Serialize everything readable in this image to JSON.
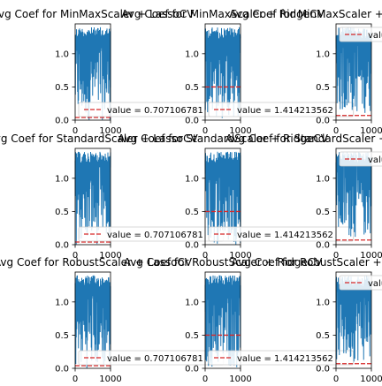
{
  "figure": {
    "background": "#ffffff",
    "line_color": "#1f77b4",
    "ref_color": "#d62728"
  },
  "chart_data": [
    {
      "type": "line",
      "title": "Avg Coef for MinMaxScaler + LassoCV",
      "xlabel": "",
      "ylabel": "",
      "xlim": [
        0,
        1000
      ],
      "ylim": [
        0,
        1.45
      ],
      "xticks": [
        "0",
        "1000"
      ],
      "yticks": [
        "0.0",
        "0.5",
        "1.0"
      ],
      "series": [
        {
          "x": [
            0,
            1000
          ],
          "y": [
            0,
            1.4
          ]
        },
        {
          "name": "value = 0.707106781",
          "y_const": 0.04
        }
      ],
      "legend": "lower right",
      "grid": false
    },
    {
      "type": "line",
      "title": "Avg Coef for MinMaxScaler + RidgeCV",
      "xlabel": "",
      "ylabel": "",
      "xlim": [
        0,
        1000
      ],
      "ylim": [
        0,
        1.45
      ],
      "xticks": [
        "0",
        "1000"
      ],
      "yticks": [
        "0.0",
        "0.5",
        "1.0"
      ],
      "series": [
        {
          "x": [
            0,
            1000
          ],
          "y": [
            0,
            1.4
          ]
        },
        {
          "name": "value = 1.414213562",
          "y_const": 0.5
        }
      ],
      "legend": "lower right",
      "grid": false
    },
    {
      "type": "line",
      "title": "Avg Coef for MinMaxScaler + LinearRegression",
      "xlabel": "",
      "ylabel": "",
      "xlim": [
        0,
        1000
      ],
      "ylim": [
        0,
        1.45
      ],
      "xticks": [
        "0",
        "1000"
      ],
      "yticks": [
        "0.0",
        "0.5",
        "1.0"
      ],
      "series": [
        {
          "x": [
            0,
            1000
          ],
          "y": [
            0.1,
            1.4
          ]
        },
        {
          "name": "value",
          "y_const": 0.07
        }
      ],
      "legend": "upper right",
      "grid": false
    },
    {
      "type": "line",
      "title": "Avg Coef for StandardScaler + LassoCV",
      "xlabel": "",
      "ylabel": "",
      "xlim": [
        0,
        1000
      ],
      "ylim": [
        0,
        1.45
      ],
      "xticks": [
        "0",
        "1000"
      ],
      "yticks": [
        "0.0",
        "0.5",
        "1.0"
      ],
      "series": [
        {
          "x": [
            0,
            1000
          ],
          "y": [
            0,
            1.4
          ]
        },
        {
          "name": "value = 0.707106781",
          "y_const": 0.04
        }
      ],
      "legend": "lower right",
      "grid": false
    },
    {
      "type": "line",
      "title": "Avg Coef for StandardScaler + RidgeCV",
      "xlabel": "",
      "ylabel": "",
      "xlim": [
        0,
        1000
      ],
      "ylim": [
        0,
        1.45
      ],
      "xticks": [
        "0",
        "1000"
      ],
      "yticks": [
        "0.0",
        "0.5",
        "1.0"
      ],
      "series": [
        {
          "x": [
            0,
            1000
          ],
          "y": [
            0,
            1.4
          ]
        },
        {
          "name": "value = 1.414213562",
          "y_const": 0.5
        }
      ],
      "legend": "lower right",
      "grid": false
    },
    {
      "type": "line",
      "title": "Avg Coef for StandardScaler + LinearRegression",
      "xlabel": "",
      "ylabel": "",
      "xlim": [
        0,
        1000
      ],
      "ylim": [
        0,
        1.45
      ],
      "xticks": [
        "0",
        "1000"
      ],
      "yticks": [
        "0.0",
        "0.5",
        "1.0"
      ],
      "series": [
        {
          "x": [
            0,
            1000
          ],
          "y": [
            0.1,
            1.4
          ]
        },
        {
          "name": "value",
          "y_const": 0.07
        }
      ],
      "legend": "upper right",
      "grid": false
    },
    {
      "type": "line",
      "title": "Avg Coef for RobustScaler + LassoCV",
      "xlabel": "",
      "ylabel": "",
      "xlim": [
        0,
        1000
      ],
      "ylim": [
        0,
        1.45
      ],
      "xticks": [
        "0",
        "1000"
      ],
      "yticks": [
        "0.0",
        "0.5",
        "1.0"
      ],
      "series": [
        {
          "x": [
            0,
            1000
          ],
          "y": [
            0,
            1.4
          ]
        },
        {
          "name": "value = 0.707106781",
          "y_const": 0.04
        }
      ],
      "legend": "lower right",
      "grid": false
    },
    {
      "type": "line",
      "title": "Avg Coef for RobustScaler + RidgeCV",
      "xlabel": "",
      "ylabel": "",
      "xlim": [
        0,
        1000
      ],
      "ylim": [
        0,
        1.45
      ],
      "xticks": [
        "0",
        "1000"
      ],
      "yticks": [
        "0.0",
        "0.5",
        "1.0"
      ],
      "series": [
        {
          "x": [
            0,
            1000
          ],
          "y": [
            0,
            1.4
          ]
        },
        {
          "name": "value = 1.414213562",
          "y_const": 0.5
        }
      ],
      "legend": "lower right",
      "grid": false
    },
    {
      "type": "line",
      "title": "Avg Coef for RobustScaler + LinearRegression",
      "xlabel": "",
      "ylabel": "",
      "xlim": [
        0,
        1000
      ],
      "ylim": [
        0,
        1.45
      ],
      "xticks": [
        "0",
        "1000"
      ],
      "yticks": [
        "0.0",
        "0.5",
        "1.0"
      ],
      "series": [
        {
          "x": [
            0,
            1000
          ],
          "y": [
            0.1,
            1.4
          ]
        },
        {
          "name": "value",
          "y_const": 0.07
        }
      ],
      "legend": "upper right",
      "grid": false
    }
  ]
}
